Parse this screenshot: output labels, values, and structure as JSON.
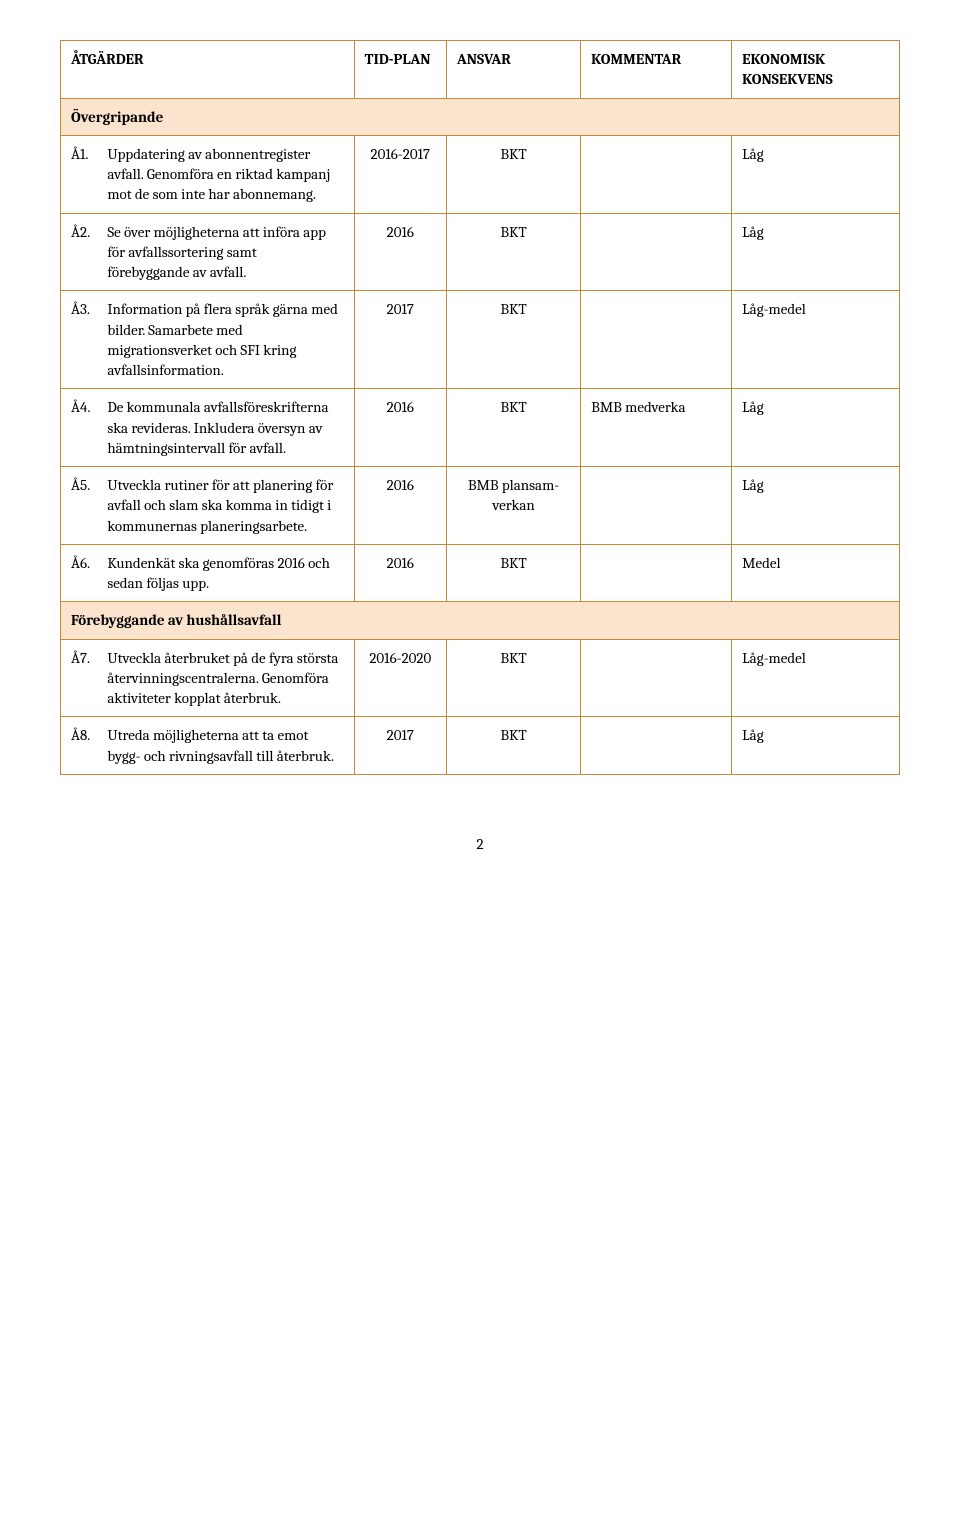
{
  "headers": {
    "action": "ÅTGÄRDER",
    "tidplan": "TID-PLAN",
    "ansvar": "ANSVAR",
    "kommentar": "KOMMENTAR",
    "ekonomisk": "EKONOMISK KONSEKVENS"
  },
  "sections": {
    "overgripande": "Övergripande",
    "forebyggande": "Förebyggande av hushållsavfall"
  },
  "rows": {
    "r1": {
      "num": "Å1.",
      "text": "Uppdatering av abonnentregister avfall. Genomföra en riktad kampanj mot de som inte har abonnemang.",
      "tid": "2016-2017",
      "ansvar": "BKT",
      "kommentar": "",
      "ekonomisk": "Låg"
    },
    "r2": {
      "num": "Å2.",
      "text": "Se över möjligheterna att införa app för avfallssortering samt förebyggande av avfall.",
      "tid": "2016",
      "ansvar": "BKT",
      "kommentar": "",
      "ekonomisk": "Låg"
    },
    "r3": {
      "num": "Å3.",
      "text": "Information på flera språk gärna med bilder. Samarbete med migrationsverket och SFI kring avfallsinformation.",
      "tid": "2017",
      "ansvar": "BKT",
      "kommentar": "",
      "ekonomisk": "Låg-medel"
    },
    "r4": {
      "num": "Å4.",
      "text": "De kommunala avfallsföreskrifterna ska revideras. Inkludera översyn av hämtningsintervall för avfall.",
      "tid": "2016",
      "ansvar": "BKT",
      "kommentar": "BMB medverka",
      "ekonomisk": "Låg"
    },
    "r5": {
      "num": "Å5.",
      "text": "Utveckla rutiner för att planering för avfall och slam ska komma in tidigt i kommunernas planeringsarbete.",
      "tid": "2016",
      "ansvar": "BMB plansam-verkan",
      "kommentar": "",
      "ekonomisk": "Låg"
    },
    "r6": {
      "num": "Å6.",
      "text": "Kundenkät ska genomföras 2016 och sedan följas upp.",
      "tid": "2016",
      "ansvar": "BKT",
      "kommentar": "",
      "ekonomisk": "Medel"
    },
    "r7": {
      "num": "Å7.",
      "text": "Utveckla återbruket på de fyra största återvinningscentralerna. Genomföra aktiviteter kopplat återbruk.",
      "tid": "2016-2020",
      "ansvar": "BKT",
      "kommentar": "",
      "ekonomisk": "Låg-medel"
    },
    "r8": {
      "num": "Å8.",
      "text": "Utreda möjligheterna att ta emot bygg- och rivningsavfall till återbruk.",
      "tid": "2017",
      "ansvar": "BKT",
      "kommentar": "",
      "ekonomisk": "Låg"
    }
  },
  "page_number": "2",
  "colors": {
    "border": "#c48a3a",
    "section_bg": "#fbe4ce",
    "text": "#000000",
    "background": "#ffffff"
  }
}
